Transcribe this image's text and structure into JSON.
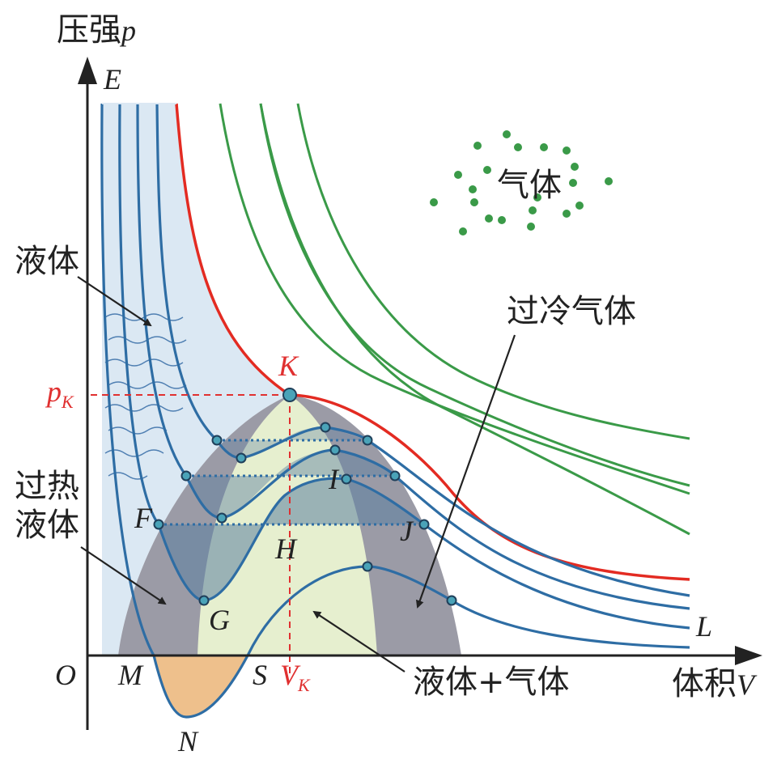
{
  "axes": {
    "y_label": "压强",
    "y_var": "p",
    "x_label": "体积",
    "x_var": "V",
    "origin": "O"
  },
  "regions": {
    "gas": "气体",
    "liquid": "液体",
    "superheated_liquid_line1": "过热",
    "superheated_liquid_line2": "液体",
    "supercooled_gas": "过冷气体",
    "liquid_gas": "液体+气体"
  },
  "critical": {
    "point": "K",
    "pressure_base": "p",
    "pressure_sub": "K",
    "volume_base": "V",
    "volume_sub": "K"
  },
  "points": {
    "E": "E",
    "F": "F",
    "G": "G",
    "H": "H",
    "I": "I",
    "J": "J",
    "L": "L",
    "M": "M",
    "N": "N",
    "S": "S"
  },
  "colors": {
    "critical_isotherm": "#e32b22",
    "subcritical_isotherm": "#2e6da4",
    "supercritical_isotherm": "#3a9a48",
    "liquid_region": "#dbe8f3",
    "coexistence_region": "#e6efcf",
    "metastable_region": "#9b9ba6",
    "negative_pressure_region": "#eec08c",
    "marker": "#e03030"
  }
}
